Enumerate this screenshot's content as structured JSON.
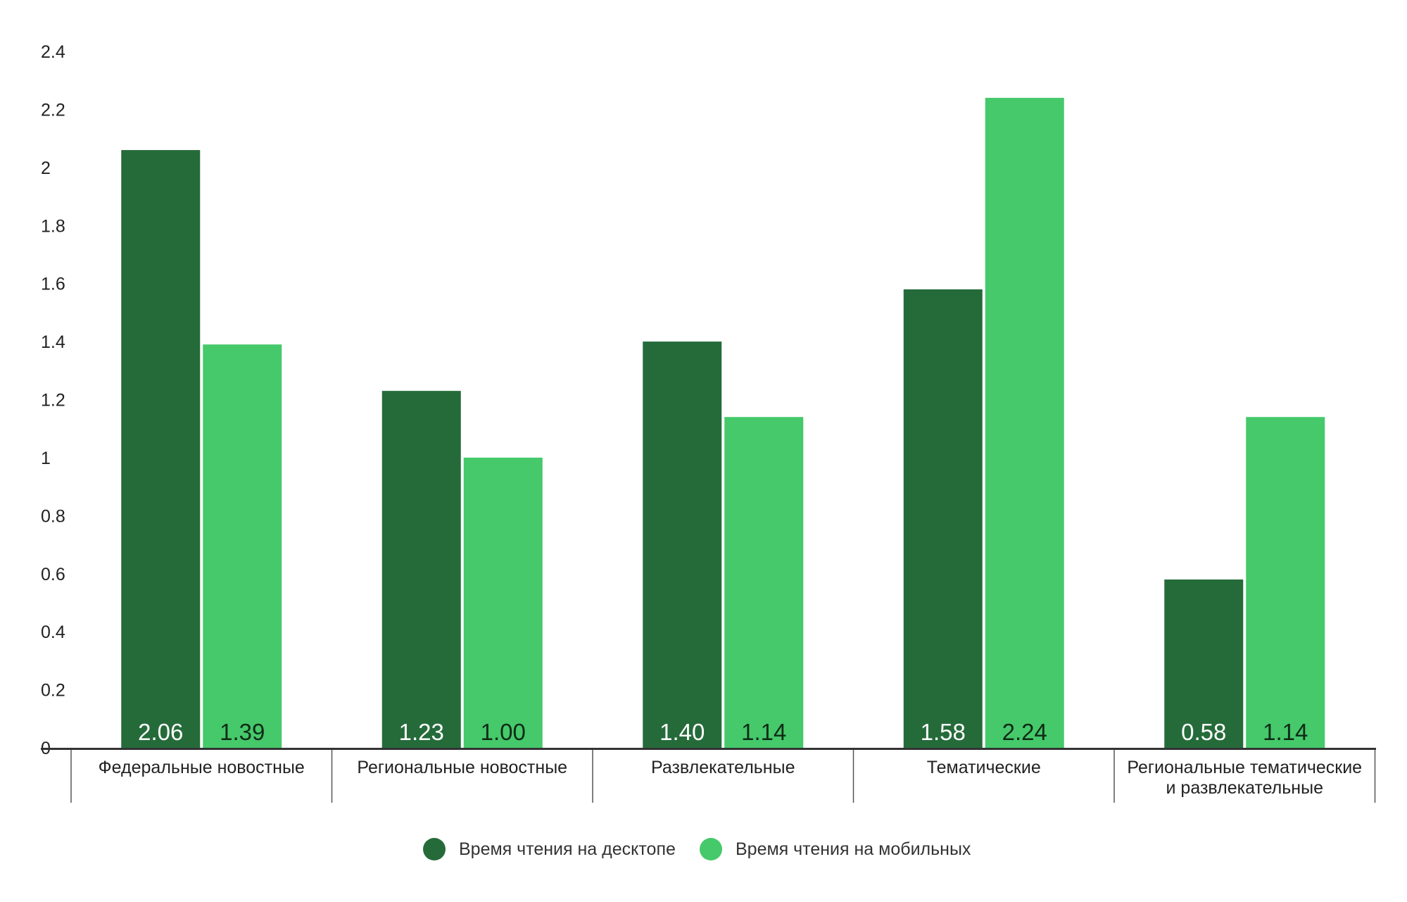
{
  "chart_data": {
    "type": "bar",
    "title": "",
    "xlabel": "",
    "ylabel": "",
    "ylim": [
      0,
      2.4
    ],
    "yticks": [
      "0",
      "0.2",
      "0.4",
      "0.6",
      "0.8",
      "1",
      "1.2",
      "1.4",
      "1.6",
      "1.8",
      "2",
      "2.2",
      "2.4"
    ],
    "ytick_values": [
      0,
      0.2,
      0.4,
      0.6,
      0.8,
      1.0,
      1.2,
      1.4,
      1.6,
      1.8,
      2.0,
      2.2,
      2.4
    ],
    "grid": false,
    "legend_position": "bottom-center",
    "categories": [
      [
        "Федеральные новостные"
      ],
      [
        "Региональные новостные"
      ],
      [
        "Развлекательные"
      ],
      [
        "Тематические"
      ],
      [
        "Региональные тематические",
        "и развлекательные"
      ]
    ],
    "series": [
      {
        "name": "Время чтения на десктопе",
        "color": "#256b3a",
        "label_color": "#ffffff",
        "values": [
          2.06,
          1.23,
          1.4,
          1.58,
          0.58
        ],
        "labels": [
          "2.06",
          "1.23",
          "1.40",
          "1.58",
          "0.58"
        ]
      },
      {
        "name": "Время чтения на мобильных",
        "color": "#45c96a",
        "label_color": "#0f2a17",
        "values": [
          1.39,
          1.0,
          1.14,
          2.24,
          1.14
        ],
        "labels": [
          "1.39",
          "1.00",
          "1.14",
          "2.24",
          "1.14"
        ]
      }
    ]
  }
}
